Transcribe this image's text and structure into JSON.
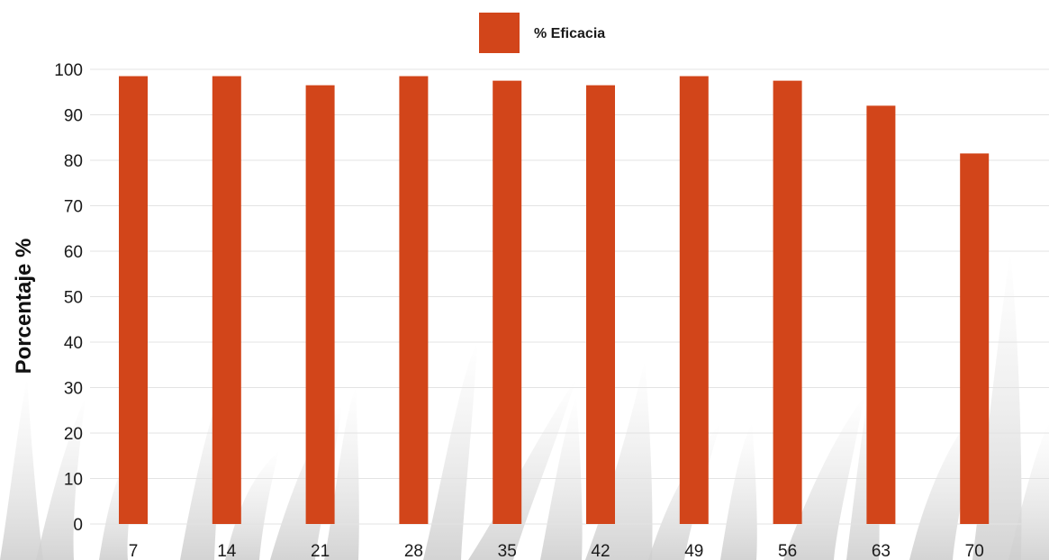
{
  "chart_data": {
    "type": "bar",
    "categories": [
      "7",
      "14",
      "21",
      "28",
      "35",
      "42",
      "49",
      "56",
      "63",
      "70"
    ],
    "series": [
      {
        "name": "% Eficacia",
        "color": "#d2451a",
        "values": [
          98.5,
          98.5,
          96.5,
          98.5,
          97.5,
          96.5,
          98.5,
          97.5,
          92,
          81.5
        ]
      }
    ],
    "title": "",
    "xlabel": "",
    "ylabel": "Porcentaje %",
    "ylim": [
      0,
      100
    ],
    "yticks": [
      0,
      10,
      20,
      30,
      40,
      50,
      60,
      70,
      80,
      90,
      100
    ],
    "grid": true,
    "legend": "top-center",
    "background_decoration": "faded grass silhouettes"
  }
}
